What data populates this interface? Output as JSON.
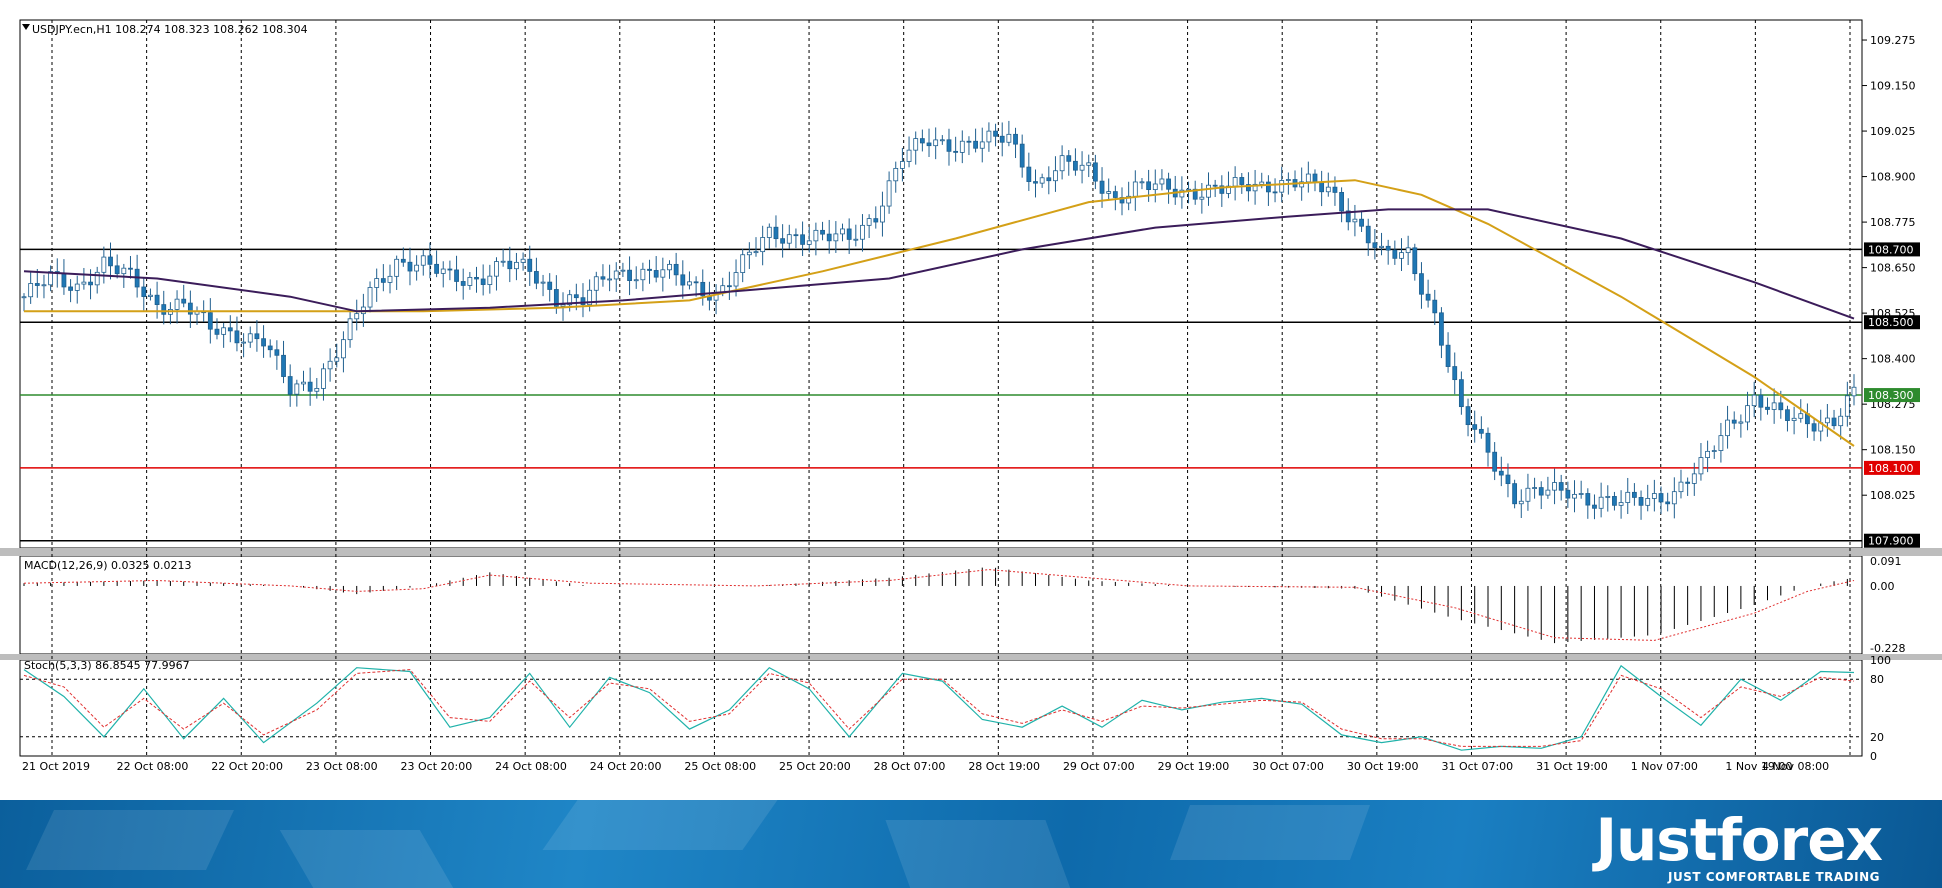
{
  "header": {
    "main": "USDJPY.ecn,H1  108.274 108.323 108.262 108.304",
    "macd": "MACD(12,26,9) 0.0325 0.0213",
    "stoch": "Stoch(5,3,3) 86.8545 77.9967"
  },
  "brand": {
    "name": "Justforex",
    "tagline": "JUST COMFORTABLE TRADING"
  },
  "colors": {
    "up_candle": "#ffffff",
    "down_candle": "#1f77b4",
    "candle_outline": "#1f5f8f",
    "ma_fast": "#d4a017",
    "ma_slow": "#3b1c5a",
    "macd_signal": "#e03030",
    "stoch_main": "#20b2aa",
    "stoch_signal": "#e03030",
    "level_black": "#000000",
    "level_green": "#2e8b2e",
    "level_red": "#e00000"
  },
  "chart_data": [
    {
      "type": "candlestick",
      "symbol": "USDJPY.ecn",
      "timeframe": "H1",
      "ylim": [
        107.88,
        109.33
      ],
      "y_ticks": [
        "109.275",
        "109.150",
        "109.025",
        "108.900",
        "108.775",
        "108.650",
        "108.525",
        "108.400",
        "108.275",
        "108.150",
        "108.025"
      ],
      "x_ticks": [
        "21 Oct 2019",
        "22 Oct 08:00",
        "22 Oct 20:00",
        "23 Oct 08:00",
        "23 Oct 20:00",
        "24 Oct 08:00",
        "24 Oct 20:00",
        "25 Oct 08:00",
        "25 Oct 20:00",
        "28 Oct 07:00",
        "28 Oct 19:00",
        "29 Oct 07:00",
        "29 Oct 19:00",
        "30 Oct 07:00",
        "30 Oct 19:00",
        "31 Oct 07:00",
        "31 Oct 19:00",
        "1 Nov 07:00",
        "1 Nov 19:00",
        "4 Nov 08:00"
      ],
      "levels": [
        {
          "label": "108.700",
          "value": 108.7,
          "color": "#000000"
        },
        {
          "label": "108.500",
          "value": 108.5,
          "color": "#000000"
        },
        {
          "label": "108.300",
          "value": 108.3,
          "color": "#2e8b2e"
        },
        {
          "label": "108.100",
          "value": 108.1,
          "color": "#e00000"
        },
        {
          "label": "107.900",
          "value": 107.9,
          "color": "#000000"
        }
      ],
      "close_path": [
        [
          0,
          108.57
        ],
        [
          4,
          108.62
        ],
        [
          8,
          108.6
        ],
        [
          12,
          108.66
        ],
        [
          16,
          108.62
        ],
        [
          20,
          108.55
        ],
        [
          24,
          108.55
        ],
        [
          28,
          108.48
        ],
        [
          32,
          108.47
        ],
        [
          36,
          108.45
        ],
        [
          40,
          108.31
        ],
        [
          44,
          108.34
        ],
        [
          48,
          108.45
        ],
        [
          52,
          108.58
        ],
        [
          56,
          108.67
        ],
        [
          60,
          108.66
        ],
        [
          64,
          108.62
        ],
        [
          68,
          108.62
        ],
        [
          72,
          108.66
        ],
        [
          76,
          108.64
        ],
        [
          80,
          108.57
        ],
        [
          84,
          108.56
        ],
        [
          88,
          108.63
        ],
        [
          92,
          108.64
        ],
        [
          96,
          108.64
        ],
        [
          100,
          108.6
        ],
        [
          104,
          108.58
        ],
        [
          108,
          108.66
        ],
        [
          112,
          108.74
        ],
        [
          116,
          108.74
        ],
        [
          120,
          108.73
        ],
        [
          124,
          108.73
        ],
        [
          128,
          108.8
        ],
        [
          132,
          108.95
        ],
        [
          136,
          109.0
        ],
        [
          140,
          108.99
        ],
        [
          144,
          108.99
        ],
        [
          148,
          109.01
        ],
        [
          152,
          108.88
        ],
        [
          156,
          108.93
        ],
        [
          160,
          108.92
        ],
        [
          164,
          108.84
        ],
        [
          168,
          108.87
        ],
        [
          172,
          108.87
        ],
        [
          176,
          108.86
        ],
        [
          180,
          108.86
        ],
        [
          184,
          108.88
        ],
        [
          188,
          108.88
        ],
        [
          192,
          108.88
        ],
        [
          196,
          108.87
        ],
        [
          200,
          108.78
        ],
        [
          204,
          108.68
        ],
        [
          208,
          108.69
        ],
        [
          212,
          108.52
        ],
        [
          216,
          108.25
        ],
        [
          220,
          108.15
        ],
        [
          224,
          108.02
        ],
        [
          228,
          108.03
        ],
        [
          232,
          108.04
        ],
        [
          236,
          108.01
        ],
        [
          240,
          108.0
        ],
        [
          244,
          108.02
        ],
        [
          248,
          108.03
        ],
        [
          252,
          108.1
        ],
        [
          256,
          108.22
        ],
        [
          260,
          108.29
        ],
        [
          264,
          108.24
        ],
        [
          268,
          108.23
        ],
        [
          272,
          108.23
        ],
        [
          275,
          108.3
        ]
      ],
      "ma_fast": [
        [
          0,
          108.53
        ],
        [
          20,
          108.53
        ],
        [
          40,
          108.53
        ],
        [
          60,
          108.53
        ],
        [
          80,
          108.54
        ],
        [
          100,
          108.56
        ],
        [
          120,
          108.64
        ],
        [
          140,
          108.73
        ],
        [
          160,
          108.83
        ],
        [
          180,
          108.87
        ],
        [
          200,
          108.89
        ],
        [
          210,
          108.85
        ],
        [
          220,
          108.77
        ],
        [
          240,
          108.57
        ],
        [
          260,
          108.35
        ],
        [
          275,
          108.16
        ]
      ],
      "ma_slow": [
        [
          0,
          108.64
        ],
        [
          20,
          108.62
        ],
        [
          40,
          108.57
        ],
        [
          50,
          108.53
        ],
        [
          70,
          108.54
        ],
        [
          90,
          108.56
        ],
        [
          110,
          108.59
        ],
        [
          130,
          108.62
        ],
        [
          150,
          108.7
        ],
        [
          170,
          108.76
        ],
        [
          190,
          108.79
        ],
        [
          205,
          108.81
        ],
        [
          220,
          108.81
        ],
        [
          240,
          108.73
        ],
        [
          260,
          108.61
        ],
        [
          275,
          108.51
        ]
      ]
    },
    {
      "type": "bar",
      "name": "MACD(12,26,9)",
      "ylim": [
        -0.25,
        0.11
      ],
      "y_ticks": [
        "0.091",
        "0.00",
        "-0.228"
      ],
      "histogram_path": [
        [
          0,
          0.01
        ],
        [
          20,
          0.02
        ],
        [
          40,
          0.0
        ],
        [
          50,
          -0.03
        ],
        [
          60,
          0.0
        ],
        [
          70,
          0.05
        ],
        [
          85,
          0.0
        ],
        [
          110,
          0.0
        ],
        [
          130,
          0.03
        ],
        [
          145,
          0.07
        ],
        [
          160,
          0.02
        ],
        [
          175,
          0.0
        ],
        [
          200,
          -0.01
        ],
        [
          215,
          -0.12
        ],
        [
          230,
          -0.21
        ],
        [
          245,
          -0.18
        ],
        [
          260,
          -0.07
        ],
        [
          268,
          0.0
        ],
        [
          275,
          0.03
        ]
      ],
      "signal_path": [
        [
          0,
          0.01
        ],
        [
          20,
          0.02
        ],
        [
          40,
          0.0
        ],
        [
          50,
          -0.02
        ],
        [
          60,
          -0.01
        ],
        [
          70,
          0.04
        ],
        [
          85,
          0.01
        ],
        [
          110,
          0.0
        ],
        [
          130,
          0.02
        ],
        [
          145,
          0.06
        ],
        [
          160,
          0.03
        ],
        [
          175,
          0.0
        ],
        [
          200,
          -0.005
        ],
        [
          215,
          -0.08
        ],
        [
          230,
          -0.19
        ],
        [
          245,
          -0.2
        ],
        [
          260,
          -0.1
        ],
        [
          268,
          -0.02
        ],
        [
          275,
          0.02
        ]
      ]
    },
    {
      "type": "line",
      "name": "Stoch(5,3,3)",
      "ylim": [
        0,
        100
      ],
      "y_ticks": [
        "100",
        "80",
        "20",
        "0"
      ],
      "levels": [
        80,
        20
      ],
      "main_path": [
        [
          0,
          90
        ],
        [
          6,
          62
        ],
        [
          12,
          20
        ],
        [
          18,
          70
        ],
        [
          24,
          18
        ],
        [
          30,
          60
        ],
        [
          36,
          14
        ],
        [
          44,
          55
        ],
        [
          50,
          92
        ],
        [
          58,
          88
        ],
        [
          64,
          30
        ],
        [
          70,
          40
        ],
        [
          76,
          86
        ],
        [
          82,
          30
        ],
        [
          88,
          82
        ],
        [
          94,
          66
        ],
        [
          100,
          28
        ],
        [
          106,
          48
        ],
        [
          112,
          92
        ],
        [
          118,
          70
        ],
        [
          124,
          20
        ],
        [
          132,
          86
        ],
        [
          138,
          78
        ],
        [
          144,
          38
        ],
        [
          150,
          30
        ],
        [
          156,
          52
        ],
        [
          162,
          30
        ],
        [
          168,
          58
        ],
        [
          174,
          48
        ],
        [
          180,
          56
        ],
        [
          186,
          60
        ],
        [
          192,
          54
        ],
        [
          198,
          22
        ],
        [
          204,
          14
        ],
        [
          210,
          20
        ],
        [
          216,
          6
        ],
        [
          222,
          10
        ],
        [
          228,
          8
        ],
        [
          234,
          20
        ],
        [
          240,
          94
        ],
        [
          246,
          62
        ],
        [
          252,
          32
        ],
        [
          258,
          80
        ],
        [
          264,
          58
        ],
        [
          270,
          88
        ],
        [
          275,
          87
        ]
      ],
      "signal_path": [
        [
          0,
          84
        ],
        [
          6,
          72
        ],
        [
          12,
          30
        ],
        [
          18,
          60
        ],
        [
          24,
          28
        ],
        [
          30,
          55
        ],
        [
          36,
          22
        ],
        [
          44,
          48
        ],
        [
          50,
          86
        ],
        [
          58,
          90
        ],
        [
          64,
          40
        ],
        [
          70,
          36
        ],
        [
          76,
          78
        ],
        [
          82,
          40
        ],
        [
          88,
          76
        ],
        [
          94,
          70
        ],
        [
          100,
          36
        ],
        [
          106,
          44
        ],
        [
          112,
          86
        ],
        [
          118,
          76
        ],
        [
          124,
          28
        ],
        [
          132,
          80
        ],
        [
          138,
          80
        ],
        [
          144,
          44
        ],
        [
          150,
          34
        ],
        [
          156,
          48
        ],
        [
          162,
          36
        ],
        [
          168,
          52
        ],
        [
          174,
          50
        ],
        [
          180,
          54
        ],
        [
          186,
          58
        ],
        [
          192,
          56
        ],
        [
          198,
          28
        ],
        [
          204,
          18
        ],
        [
          210,
          18
        ],
        [
          216,
          10
        ],
        [
          222,
          10
        ],
        [
          228,
          10
        ],
        [
          234,
          16
        ],
        [
          240,
          84
        ],
        [
          246,
          70
        ],
        [
          252,
          40
        ],
        [
          258,
          72
        ],
        [
          264,
          62
        ],
        [
          270,
          82
        ],
        [
          275,
          78
        ]
      ]
    }
  ]
}
